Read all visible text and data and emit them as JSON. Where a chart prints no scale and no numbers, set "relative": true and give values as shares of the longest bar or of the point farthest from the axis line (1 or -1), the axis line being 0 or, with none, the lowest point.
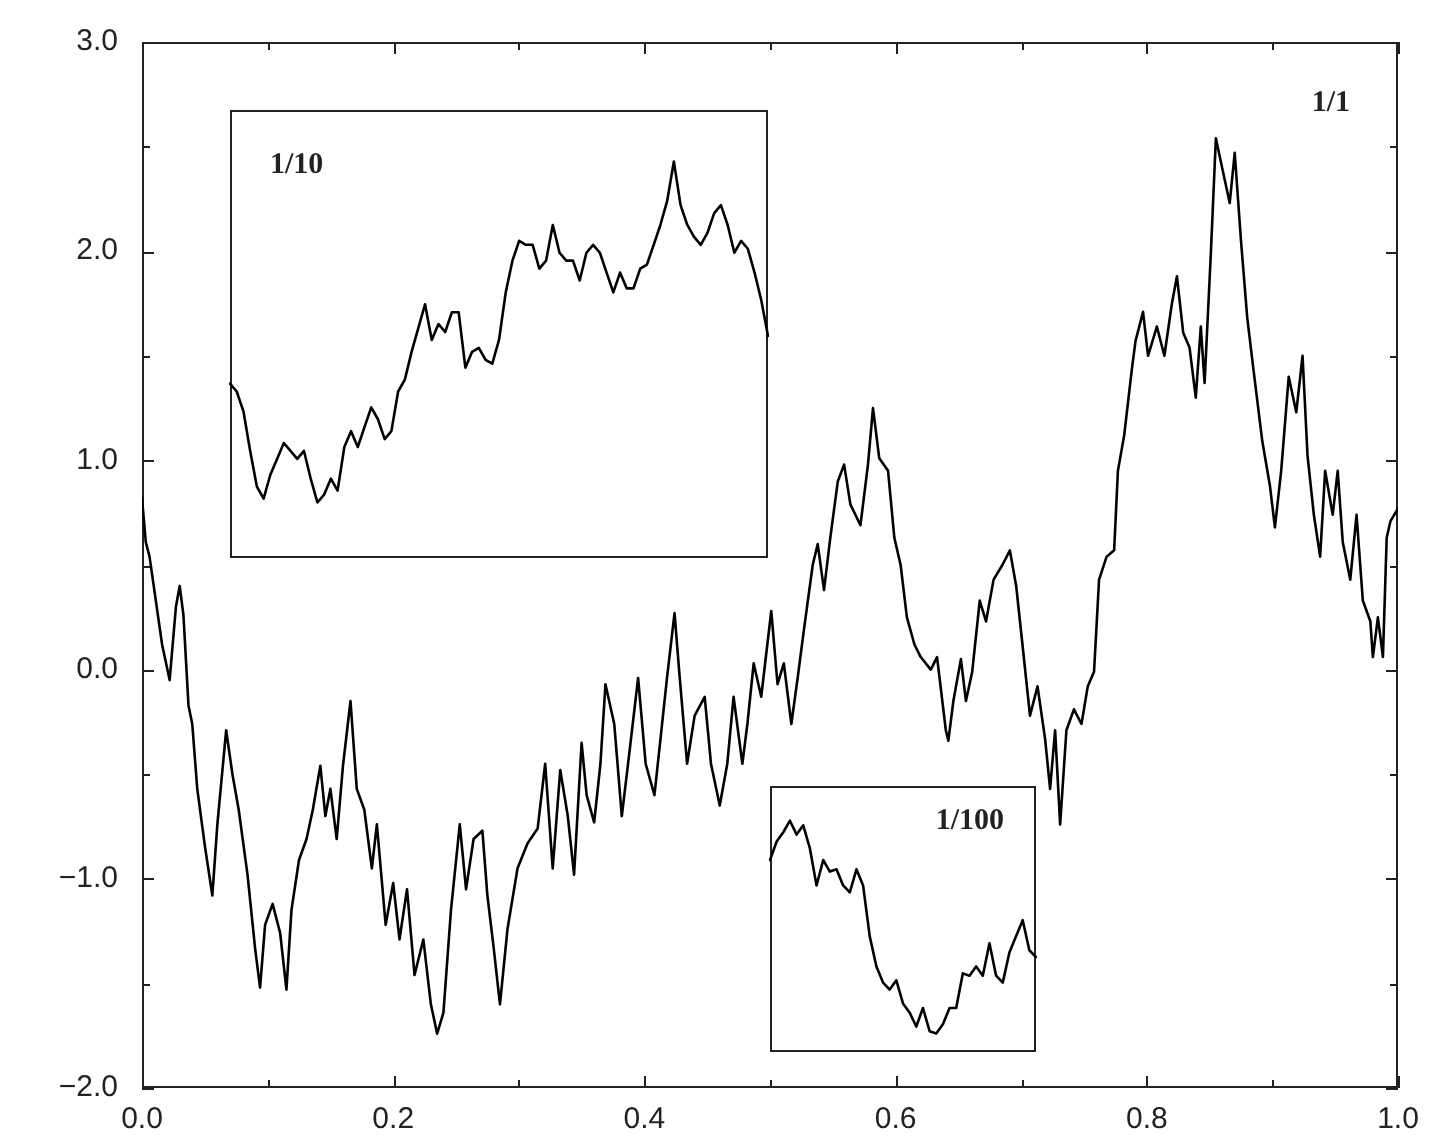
{
  "chart_data": [
    {
      "type": "line",
      "color": "#000000",
      "xlim": [
        0,
        1
      ],
      "ylim": [
        -2,
        3
      ],
      "xticks": [
        {
          "value": 0,
          "label": "0.0"
        },
        {
          "value": 0.1,
          "label": null
        },
        0.2,
        {
          "value": 0.3,
          "label": null
        },
        0.4,
        {
          "value": 0.5,
          "label": null
        },
        0.6,
        {
          "value": 0.7,
          "label": null
        },
        0.8,
        {
          "value": 0.9,
          "label": null
        },
        {
          "value": 1,
          "label": "1.0"
        }
      ],
      "yticks": [
        {
          "value": -2,
          "label": "−2.0"
        },
        {
          "value": -1.5,
          "label": null
        },
        {
          "value": -1,
          "label": "−1.0"
        },
        {
          "value": -0.5,
          "label": null
        },
        {
          "value": 0,
          "label": "0.0"
        },
        {
          "value": 0.5,
          "label": null
        },
        {
          "value": 1,
          "label": "1.0"
        },
        {
          "value": 1.5,
          "label": null
        },
        {
          "value": 2,
          "label": "2.0"
        },
        {
          "value": 2.5,
          "label": null
        },
        {
          "value": 3,
          "label": "3.0"
        }
      ],
      "annotations": [
        "1/1"
      ],
      "x": [
        0,
        0.003,
        0.006,
        0.011,
        0.016,
        0.022,
        0.027,
        0.03,
        0.033,
        0.037,
        0.04,
        0.044,
        0.05,
        0.056,
        0.06,
        0.067,
        0.072,
        0.077,
        0.084,
        0.09,
        0.094,
        0.098,
        0.104,
        0.11,
        0.115,
        0.119,
        0.125,
        0.131,
        0.136,
        0.142,
        0.146,
        0.15,
        0.155,
        0.16,
        0.166,
        0.171,
        0.177,
        0.183,
        0.187,
        0.194,
        0.2,
        0.205,
        0.211,
        0.217,
        0.224,
        0.23,
        0.235,
        0.24,
        0.246,
        0.253,
        0.258,
        0.264,
        0.271,
        0.275,
        0.28,
        0.285,
        0.291,
        0.299,
        0.307,
        0.315,
        0.321,
        0.327,
        0.333,
        0.339,
        0.344,
        0.35,
        0.354,
        0.36,
        0.365,
        0.369,
        0.376,
        0.382,
        0.387,
        0.395,
        0.401,
        0.408,
        0.413,
        0.418,
        0.424,
        0.428,
        0.434,
        0.44,
        0.448,
        0.453,
        0.46,
        0.466,
        0.471,
        0.478,
        0.482,
        0.487,
        0.493,
        0.501,
        0.506,
        0.511,
        0.517,
        0.522,
        0.527,
        0.534,
        0.538,
        0.543,
        0.548,
        0.554,
        0.559,
        0.564,
        0.572,
        0.578,
        0.582,
        0.587,
        0.594,
        0.599,
        0.604,
        0.609,
        0.615,
        0.62,
        0.628,
        0.633,
        0.64,
        0.642,
        0.646,
        0.652,
        0.656,
        0.661,
        0.667,
        0.672,
        0.678,
        0.685,
        0.691,
        0.696,
        0.701,
        0.707,
        0.713,
        0.719,
        0.723,
        0.727,
        0.731,
        0.736,
        0.742,
        0.748,
        0.753,
        0.758,
        0.762,
        0.768,
        0.774,
        0.777,
        0.782,
        0.788,
        0.791,
        0.797,
        0.801,
        0.808,
        0.814,
        0.82,
        0.824,
        0.829,
        0.834,
        0.839,
        0.843,
        0.846,
        0.851,
        0.855,
        0.861,
        0.866,
        0.87,
        0.875,
        0.88,
        0.885,
        0.892,
        0.898,
        0.902,
        0.907,
        0.913,
        0.919,
        0.924,
        0.928,
        0.933,
        0.938,
        0.942,
        0.948,
        0.952,
        0.956,
        0.962,
        0.967,
        0.972,
        0.978,
        0.98,
        0.984,
        0.988,
        0.991,
        0.994,
        1
      ],
      "values": [
        0.82,
        0.61,
        0.54,
        0.33,
        0.12,
        -0.05,
        0.3,
        0.4,
        0.26,
        -0.17,
        -0.26,
        -0.57,
        -0.84,
        -1.08,
        -0.74,
        -0.29,
        -0.5,
        -0.67,
        -0.98,
        -1.33,
        -1.52,
        -1.22,
        -1.12,
        -1.26,
        -1.53,
        -1.15,
        -0.91,
        -0.81,
        -0.67,
        -0.46,
        -0.7,
        -0.57,
        -0.81,
        -0.46,
        -0.15,
        -0.57,
        -0.67,
        -0.95,
        -0.74,
        -1.22,
        -1.02,
        -1.29,
        -1.05,
        -1.46,
        -1.29,
        -1.6,
        -1.74,
        -1.64,
        -1.15,
        -0.74,
        -1.05,
        -0.81,
        -0.77,
        -1.08,
        -1.33,
        -1.6,
        -1.24,
        -0.95,
        -0.83,
        -0.76,
        -0.45,
        -0.95,
        -0.48,
        -0.7,
        -0.98,
        -0.35,
        -0.6,
        -0.73,
        -0.45,
        -0.07,
        -0.26,
        -0.7,
        -0.45,
        -0.04,
        -0.45,
        -0.6,
        -0.32,
        -0.04,
        0.27,
        -0.03,
        -0.45,
        -0.22,
        -0.13,
        -0.45,
        -0.65,
        -0.45,
        -0.13,
        -0.45,
        -0.26,
        0.03,
        -0.13,
        0.28,
        -0.07,
        0.03,
        -0.26,
        -0.04,
        0.19,
        0.5,
        0.6,
        0.38,
        0.63,
        0.9,
        0.98,
        0.79,
        0.69,
        0.98,
        1.25,
        1.01,
        0.95,
        0.63,
        0.5,
        0.25,
        0.12,
        0.06,
        0.0,
        0.06,
        -0.29,
        -0.34,
        -0.15,
        0.05,
        -0.15,
        -0.01,
        0.33,
        0.23,
        0.43,
        0.5,
        0.57,
        0.4,
        0.12,
        -0.22,
        -0.08,
        -0.33,
        -0.57,
        -0.29,
        -0.74,
        -0.29,
        -0.19,
        -0.26,
        -0.08,
        -0.01,
        0.43,
        0.54,
        0.57,
        0.95,
        1.12,
        1.43,
        1.57,
        1.71,
        1.5,
        1.64,
        1.5,
        1.75,
        1.88,
        1.61,
        1.54,
        1.3,
        1.64,
        1.37,
        1.99,
        2.54,
        2.37,
        2.23,
        2.47,
        2.05,
        1.68,
        1.43,
        1.09,
        0.88,
        0.68,
        0.95,
        1.4,
        1.23,
        1.5,
        1.02,
        0.74,
        0.54,
        0.95,
        0.74,
        0.95,
        0.61,
        0.43,
        0.74,
        0.33,
        0.23,
        0.06,
        0.25,
        0.06,
        0.63,
        0.71,
        0.77
      ]
    },
    {
      "type": "line",
      "color": "#000000",
      "relative": true,
      "annotations": [
        "1/10"
      ],
      "categories": [
        null,
        null,
        null,
        null,
        null,
        null,
        null,
        null,
        null,
        null,
        null,
        null,
        null,
        null,
        null,
        null,
        null,
        null,
        null,
        null,
        null,
        null,
        null,
        null,
        null,
        null,
        null,
        null,
        null,
        null,
        null,
        null,
        null,
        null,
        null,
        null,
        null,
        null,
        null,
        null,
        null,
        null,
        null,
        null,
        null,
        null,
        null,
        null,
        null,
        null,
        null,
        null,
        null,
        null,
        null,
        null,
        null,
        null,
        null,
        null,
        null,
        null,
        null,
        null,
        null,
        null,
        null,
        null,
        null,
        null,
        null,
        null,
        null,
        null,
        null,
        null,
        null,
        null,
        null,
        null,
        null
      ],
      "values": [
        0.44,
        0.42,
        0.37,
        0.27,
        0.18,
        0.15,
        0.21,
        0.25,
        0.29,
        0.27,
        0.25,
        0.27,
        0.2,
        0.14,
        0.16,
        0.2,
        0.17,
        0.28,
        0.32,
        0.28,
        0.33,
        0.38,
        0.35,
        0.3,
        0.32,
        0.42,
        0.45,
        0.52,
        0.58,
        0.64,
        0.55,
        0.59,
        0.57,
        0.62,
        0.62,
        0.48,
        0.52,
        0.53,
        0.5,
        0.49,
        0.55,
        0.67,
        0.75,
        0.8,
        0.79,
        0.79,
        0.73,
        0.75,
        0.84,
        0.77,
        0.75,
        0.75,
        0.7,
        0.77,
        0.79,
        0.77,
        0.72,
        0.67,
        0.72,
        0.68,
        0.68,
        0.73,
        0.74,
        0.79,
        0.84,
        0.9,
        1,
        0.89,
        0.84,
        0.81,
        0.79,
        0.82,
        0.87,
        0.89,
        0.84,
        0.77,
        0.8,
        0.78,
        0.72,
        0.65,
        0.56
      ]
    },
    {
      "type": "line",
      "color": "#000000",
      "relative": true,
      "annotations": [
        "1/100"
      ],
      "categories": [
        null,
        null,
        null,
        null,
        null,
        null,
        null,
        null,
        null,
        null,
        null,
        null,
        null,
        null,
        null,
        null,
        null,
        null,
        null,
        null,
        null,
        null,
        null,
        null,
        null,
        null,
        null,
        null,
        null,
        null,
        null,
        null,
        null,
        null,
        null,
        null,
        null,
        null,
        null,
        null,
        null
      ],
      "values": [
        0.83,
        0.91,
        0.95,
        1,
        0.94,
        0.98,
        0.88,
        0.72,
        0.83,
        0.78,
        0.79,
        0.72,
        0.69,
        0.79,
        0.72,
        0.5,
        0.37,
        0.3,
        0.27,
        0.31,
        0.21,
        0.17,
        0.11,
        0.19,
        0.09,
        0.08,
        0.12,
        0.19,
        0.19,
        0.34,
        0.33,
        0.37,
        0.33,
        0.47,
        0.33,
        0.3,
        0.43,
        0.5,
        0.57,
        0.44,
        0.41
      ]
    }
  ]
}
